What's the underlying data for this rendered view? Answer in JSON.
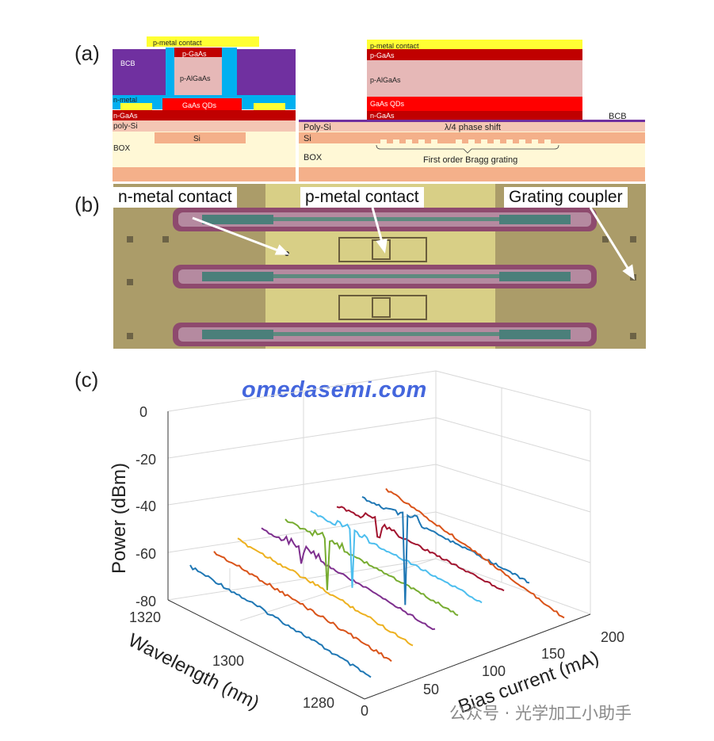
{
  "panels": {
    "a": {
      "label": "(a)"
    },
    "b": {
      "label": "(b)"
    },
    "c": {
      "label": "(c)"
    }
  },
  "cross_section_left": {
    "pmetal": "p-metal contact",
    "pgaas": "p-GaAs",
    "palgaas": "p-AlGaAs",
    "bcb": "BCB",
    "nmetal": "n-metal",
    "gaasqds": "GaAs QDs",
    "ngaas": "n-GaAs",
    "polysi": "poly-Si",
    "si": "Si",
    "box": "BOX"
  },
  "cross_section_right": {
    "pmetal": "p-metal contact",
    "pgaas": "p-GaAs",
    "palgaas": "p-AlGaAs",
    "gaasqds": "GaAs QDs",
    "ngaas": "n-GaAs",
    "bcb": "BCB",
    "polysi": "Poly-Si",
    "si": "Si",
    "phase_shift": "λ/4 phase shift",
    "box": "BOX",
    "bragg": "First order Bragg grating"
  },
  "micrograph": {
    "callout_n": "n-metal contact",
    "callout_p": "p-metal contact",
    "callout_g": "Grating coupler"
  },
  "watermark": "omedasemi.com",
  "chart_data": {
    "type": "line",
    "zlabel": "Power (dBm)",
    "ylabel": "Wavelength (nm)",
    "xlabel": "Bias current (mA)",
    "zlim": [
      -80,
      0
    ],
    "ylim": [
      1280,
      1320
    ],
    "xlim": [
      0,
      200
    ],
    "z_ticks": [
      "0",
      "-20",
      "-40",
      "-60",
      "-80"
    ],
    "y_ticks": [
      "1320",
      "1300",
      "1280"
    ],
    "x_ticks": [
      "0",
      "50",
      "100",
      "150",
      "200"
    ],
    "grid": true,
    "series": [
      {
        "bias": 20,
        "color": "#1f77b4",
        "peak_dbm": null
      },
      {
        "bias": 40,
        "color": "#d95319",
        "peak_dbm": null
      },
      {
        "bias": 60,
        "color": "#edb120",
        "peak_dbm": null
      },
      {
        "bias": 80,
        "color": "#7e2f8e",
        "peak_dbm": -34
      },
      {
        "bias": 100,
        "color": "#77ac30",
        "peak_dbm": -30
      },
      {
        "bias": 120,
        "color": "#4dbeee",
        "peak_dbm": -30
      },
      {
        "bias": 140,
        "color": "#a2142f",
        "peak_dbm": -20
      },
      {
        "bias": 160,
        "color": "#1f77b4",
        "peak_dbm": -12
      },
      {
        "bias": 180,
        "color": "#d95319",
        "peak_dbm": null
      }
    ]
  },
  "footer": {
    "source": "公众号 · 光学加工小助手"
  }
}
